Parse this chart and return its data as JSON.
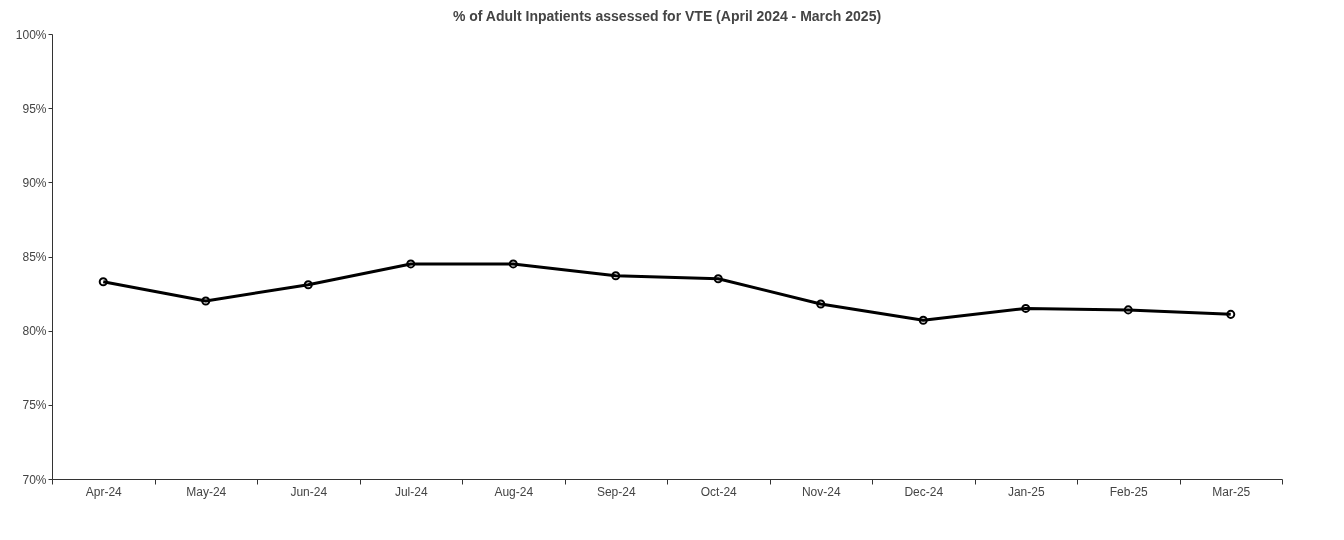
{
  "chart_data": {
    "type": "line",
    "title": "% of Adult Inpatients assessed for VTE (April 2024 - March 2025)",
    "categories": [
      "Apr-24",
      "May-24",
      "Jun-24",
      "Jul-24",
      "Aug-24",
      "Sep-24",
      "Oct-24",
      "Nov-24",
      "Dec-24",
      "Jan-25",
      "Feb-25",
      "Mar-25"
    ],
    "series": [
      {
        "color": "#000000",
        "values": [
          83.3,
          82.0,
          83.1,
          84.5,
          84.5,
          83.7,
          83.5,
          81.8,
          80.7,
          81.5,
          81.4,
          81.1
        ]
      }
    ],
    "ylim": [
      70,
      100
    ],
    "yticks": [
      {
        "value": 70,
        "label": "70%"
      },
      {
        "value": 75,
        "label": "75%"
      },
      {
        "value": 80,
        "label": "80%"
      },
      {
        "value": 85,
        "label": "85%"
      },
      {
        "value": 90,
        "label": "90%"
      },
      {
        "value": 95,
        "label": "95%"
      },
      {
        "value": 100,
        "label": "100%"
      }
    ],
    "grid": false,
    "legend": false,
    "marker": "circle",
    "line_style": "solid"
  }
}
